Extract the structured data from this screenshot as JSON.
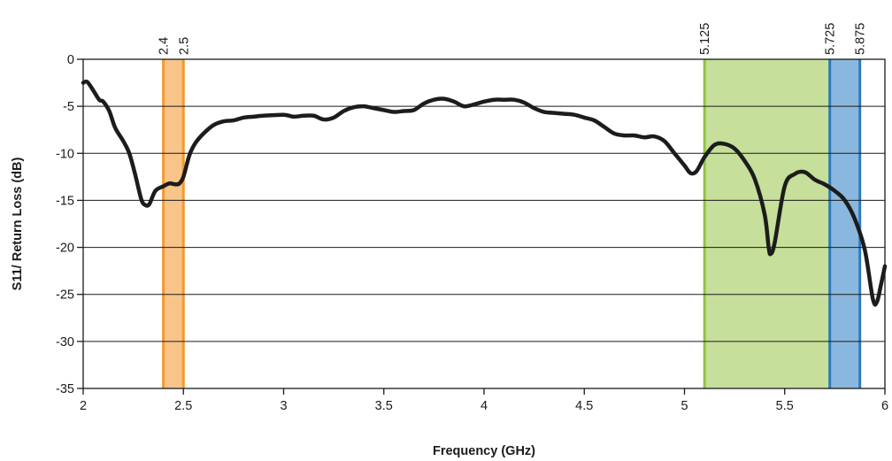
{
  "chart_data": {
    "type": "line",
    "title": "",
    "xlabel": "Frequency (GHz)",
    "ylabel": "S11/ Return Loss (dB)",
    "xlim": [
      2,
      6
    ],
    "ylim": [
      -35,
      0
    ],
    "x_ticks": [
      2,
      2.5,
      3,
      3.5,
      4,
      4.5,
      5,
      5.5,
      6
    ],
    "x_tick_labels": [
      "2",
      "2.5",
      "3",
      "3.5",
      "4",
      "4.5",
      "5",
      "5.5",
      "6"
    ],
    "y_ticks": [
      0,
      -5,
      -10,
      -15,
      -20,
      -25,
      -30,
      -35
    ],
    "y_tick_labels": [
      "0",
      "-5",
      "-10",
      "-15",
      "-20",
      "-25",
      "-30",
      "-35"
    ],
    "grid": "horizontal",
    "bands": [
      {
        "from": 2.4,
        "to": 2.5,
        "fill": "#f8c48a",
        "stroke": "#f19a2e",
        "labels": [
          "2.4",
          "2.5"
        ]
      },
      {
        "from": 5.1,
        "to": 5.725,
        "fill": "#c6df9a",
        "stroke": "#8dc63f",
        "labels": [
          "5.125",
          "5.725"
        ]
      },
      {
        "from": 5.725,
        "to": 5.875,
        "fill": "#8ab7dd",
        "stroke": "#2e7abf",
        "labels": [
          "5.875"
        ]
      }
    ],
    "series": [
      {
        "color": "#1c1c1c",
        "points": [
          [
            2.0,
            -2.5
          ],
          [
            2.02,
            -2.4
          ],
          [
            2.05,
            -3.3
          ],
          [
            2.08,
            -4.3
          ],
          [
            2.1,
            -4.5
          ],
          [
            2.13,
            -5.5
          ],
          [
            2.16,
            -7.3
          ],
          [
            2.2,
            -8.7
          ],
          [
            2.23,
            -10.0
          ],
          [
            2.26,
            -12.3
          ],
          [
            2.29,
            -14.9
          ],
          [
            2.31,
            -15.5
          ],
          [
            2.33,
            -15.4
          ],
          [
            2.36,
            -14.0
          ],
          [
            2.4,
            -13.5
          ],
          [
            2.43,
            -13.2
          ],
          [
            2.46,
            -13.3
          ],
          [
            2.48,
            -13.2
          ],
          [
            2.5,
            -12.5
          ],
          [
            2.53,
            -10.2
          ],
          [
            2.56,
            -8.9
          ],
          [
            2.6,
            -7.9
          ],
          [
            2.65,
            -7.0
          ],
          [
            2.7,
            -6.6
          ],
          [
            2.75,
            -6.5
          ],
          [
            2.8,
            -6.2
          ],
          [
            2.85,
            -6.1
          ],
          [
            2.9,
            -6.0
          ],
          [
            3.0,
            -5.9
          ],
          [
            3.05,
            -6.1
          ],
          [
            3.1,
            -6.0
          ],
          [
            3.15,
            -6.0
          ],
          [
            3.2,
            -6.4
          ],
          [
            3.25,
            -6.2
          ],
          [
            3.3,
            -5.5
          ],
          [
            3.35,
            -5.1
          ],
          [
            3.4,
            -5.0
          ],
          [
            3.45,
            -5.2
          ],
          [
            3.5,
            -5.4
          ],
          [
            3.55,
            -5.6
          ],
          [
            3.6,
            -5.5
          ],
          [
            3.65,
            -5.4
          ],
          [
            3.7,
            -4.7
          ],
          [
            3.75,
            -4.3
          ],
          [
            3.8,
            -4.2
          ],
          [
            3.85,
            -4.5
          ],
          [
            3.9,
            -5.0
          ],
          [
            3.95,
            -4.8
          ],
          [
            4.0,
            -4.5
          ],
          [
            4.05,
            -4.3
          ],
          [
            4.1,
            -4.3
          ],
          [
            4.15,
            -4.3
          ],
          [
            4.2,
            -4.6
          ],
          [
            4.25,
            -5.2
          ],
          [
            4.3,
            -5.6
          ],
          [
            4.35,
            -5.7
          ],
          [
            4.4,
            -5.8
          ],
          [
            4.45,
            -5.9
          ],
          [
            4.5,
            -6.2
          ],
          [
            4.55,
            -6.5
          ],
          [
            4.6,
            -7.2
          ],
          [
            4.65,
            -7.9
          ],
          [
            4.7,
            -8.1
          ],
          [
            4.75,
            -8.1
          ],
          [
            4.8,
            -8.3
          ],
          [
            4.85,
            -8.2
          ],
          [
            4.9,
            -8.7
          ],
          [
            4.95,
            -10.0
          ],
          [
            5.0,
            -11.3
          ],
          [
            5.03,
            -12.1
          ],
          [
            5.06,
            -11.9
          ],
          [
            5.1,
            -10.4
          ],
          [
            5.15,
            -9.1
          ],
          [
            5.2,
            -9.0
          ],
          [
            5.25,
            -9.5
          ],
          [
            5.3,
            -10.8
          ],
          [
            5.35,
            -12.7
          ],
          [
            5.4,
            -16.5
          ],
          [
            5.42,
            -20.0
          ],
          [
            5.43,
            -20.7
          ],
          [
            5.45,
            -19.5
          ],
          [
            5.5,
            -13.5
          ],
          [
            5.55,
            -12.2
          ],
          [
            5.6,
            -12.0
          ],
          [
            5.65,
            -12.8
          ],
          [
            5.7,
            -13.3
          ],
          [
            5.75,
            -14.0
          ],
          [
            5.8,
            -15.0
          ],
          [
            5.85,
            -17.0
          ],
          [
            5.9,
            -20.3
          ],
          [
            5.94,
            -25.5
          ],
          [
            5.96,
            -25.8
          ],
          [
            5.98,
            -24.0
          ],
          [
            6.0,
            -22.0
          ]
        ]
      }
    ]
  }
}
